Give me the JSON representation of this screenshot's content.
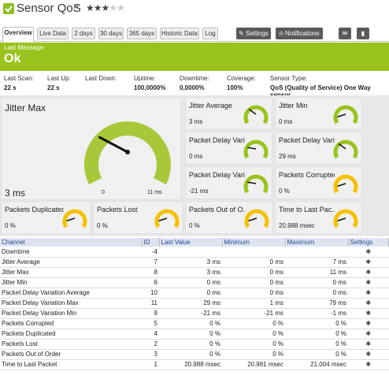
{
  "header": {
    "title": "Sensor QoS",
    "flag_icon": "flag-icon",
    "stars_on": "★★★",
    "stars_off": "★★"
  },
  "tabs": [
    {
      "label": "Overview"
    },
    {
      "label": "Live Data"
    },
    {
      "label": "2 days"
    },
    {
      "label": "30 days"
    },
    {
      "label": "365 days"
    },
    {
      "label": "Historic Data"
    },
    {
      "label": "Log"
    }
  ],
  "toolbar": {
    "settings_label": "Settings",
    "notifications_label": "Notifications"
  },
  "status": {
    "label": "Last Message:",
    "value": "Ok",
    "color": "#99c31c"
  },
  "info": [
    {
      "key": "Last Scan:",
      "value": "22 s"
    },
    {
      "key": "Last Up:",
      "value": "22 s"
    },
    {
      "key": "Last Down:",
      "value": ""
    },
    {
      "key": "Uptime:",
      "value": "100,0000%"
    },
    {
      "key": "Downtime:",
      "value": "0,0000%"
    },
    {
      "key": "Coverage:",
      "value": "100%"
    },
    {
      "key": "Sensor Type:",
      "value": "QoS (Quality of Service) One Way sensor"
    }
  ],
  "gauges": {
    "big": {
      "title": "Jitter Max",
      "value": "3 ms",
      "min": "0",
      "max": "11 ms",
      "fraction": 0.27
    },
    "panels": [
      {
        "title": "Jitter Average",
        "value": "3 ms",
        "color": "#99c31c",
        "fraction": 0.3
      },
      {
        "title": "Jitter Min",
        "value": "0 ms",
        "color": "#99c31c",
        "fraction": 0.1
      },
      {
        "title": "Packet Delay Varia...",
        "value": "0 ms",
        "color": "#99c31c",
        "fraction": 0.2
      },
      {
        "title": "Packet Delay Varia...",
        "value": "29 ms",
        "color": "#99c31c",
        "fraction": 0.3
      },
      {
        "title": "Packet Delay Varia...",
        "value": "-21 ms",
        "color": "#99c31c",
        "fraction": 0.2
      },
      {
        "title": "Packets Corrupted",
        "value": "0 %",
        "color": "#f5c000",
        "fraction": 0.1
      },
      {
        "title": "Packets Duplicated",
        "value": "0 %",
        "color": "#f5c000",
        "fraction": 0.1
      },
      {
        "title": "Packets Lost",
        "value": "0 %",
        "color": "#f5c000",
        "fraction": 0.1
      },
      {
        "title": "Packets Out of O...",
        "value": "0 %",
        "color": "#f5c000",
        "fraction": 0.1
      },
      {
        "title": "Time to Last Pac...",
        "value": "20.988 msec",
        "color": "#f5c000",
        "fraction": 0.1
      }
    ]
  },
  "table": {
    "headers": [
      "Channel",
      "ID",
      "Last Value",
      "Minimum",
      "Maximum",
      "Settings"
    ],
    "rows": [
      {
        "channel": "Downtime",
        "id": "-4",
        "last": "",
        "min": "",
        "max": ""
      },
      {
        "channel": "Jitter Average",
        "id": "7",
        "last": "3 ms",
        "min": "0 ms",
        "max": "7 ms"
      },
      {
        "channel": "Jitter Max",
        "id": "8",
        "last": "3 ms",
        "min": "0 ms",
        "max": "11 ms"
      },
      {
        "channel": "Jitter Min",
        "id": "6",
        "last": "0 ms",
        "min": "0 ms",
        "max": "0 ms"
      },
      {
        "channel": "Packet Delay Variation Average",
        "id": "10",
        "last": "0 ms",
        "min": "0 ms",
        "max": "0 ms"
      },
      {
        "channel": "Packet Delay Variation Max",
        "id": "11",
        "last": "29 ms",
        "min": "1 ms",
        "max": "79 ms"
      },
      {
        "channel": "Packet Delay Variation Min",
        "id": "9",
        "last": "-21 ms",
        "min": "-21 ms",
        "max": "-1 ms"
      },
      {
        "channel": "Packets Corrupted",
        "id": "5",
        "last": "0 %",
        "min": "0 %",
        "max": "0 %"
      },
      {
        "channel": "Packets Duplicated",
        "id": "4",
        "last": "0 %",
        "min": "0 %",
        "max": "0 %"
      },
      {
        "channel": "Packets Lost",
        "id": "2",
        "last": "0 %",
        "min": "0 %",
        "max": "0 %"
      },
      {
        "channel": "Packets Out of Order",
        "id": "3",
        "last": "0 %",
        "min": "0 %",
        "max": "0 %"
      },
      {
        "channel": "Time to Last Packet",
        "id": "1",
        "last": "20.988 msec",
        "min": "20.981 msec",
        "max": "21.004 msec"
      }
    ]
  }
}
